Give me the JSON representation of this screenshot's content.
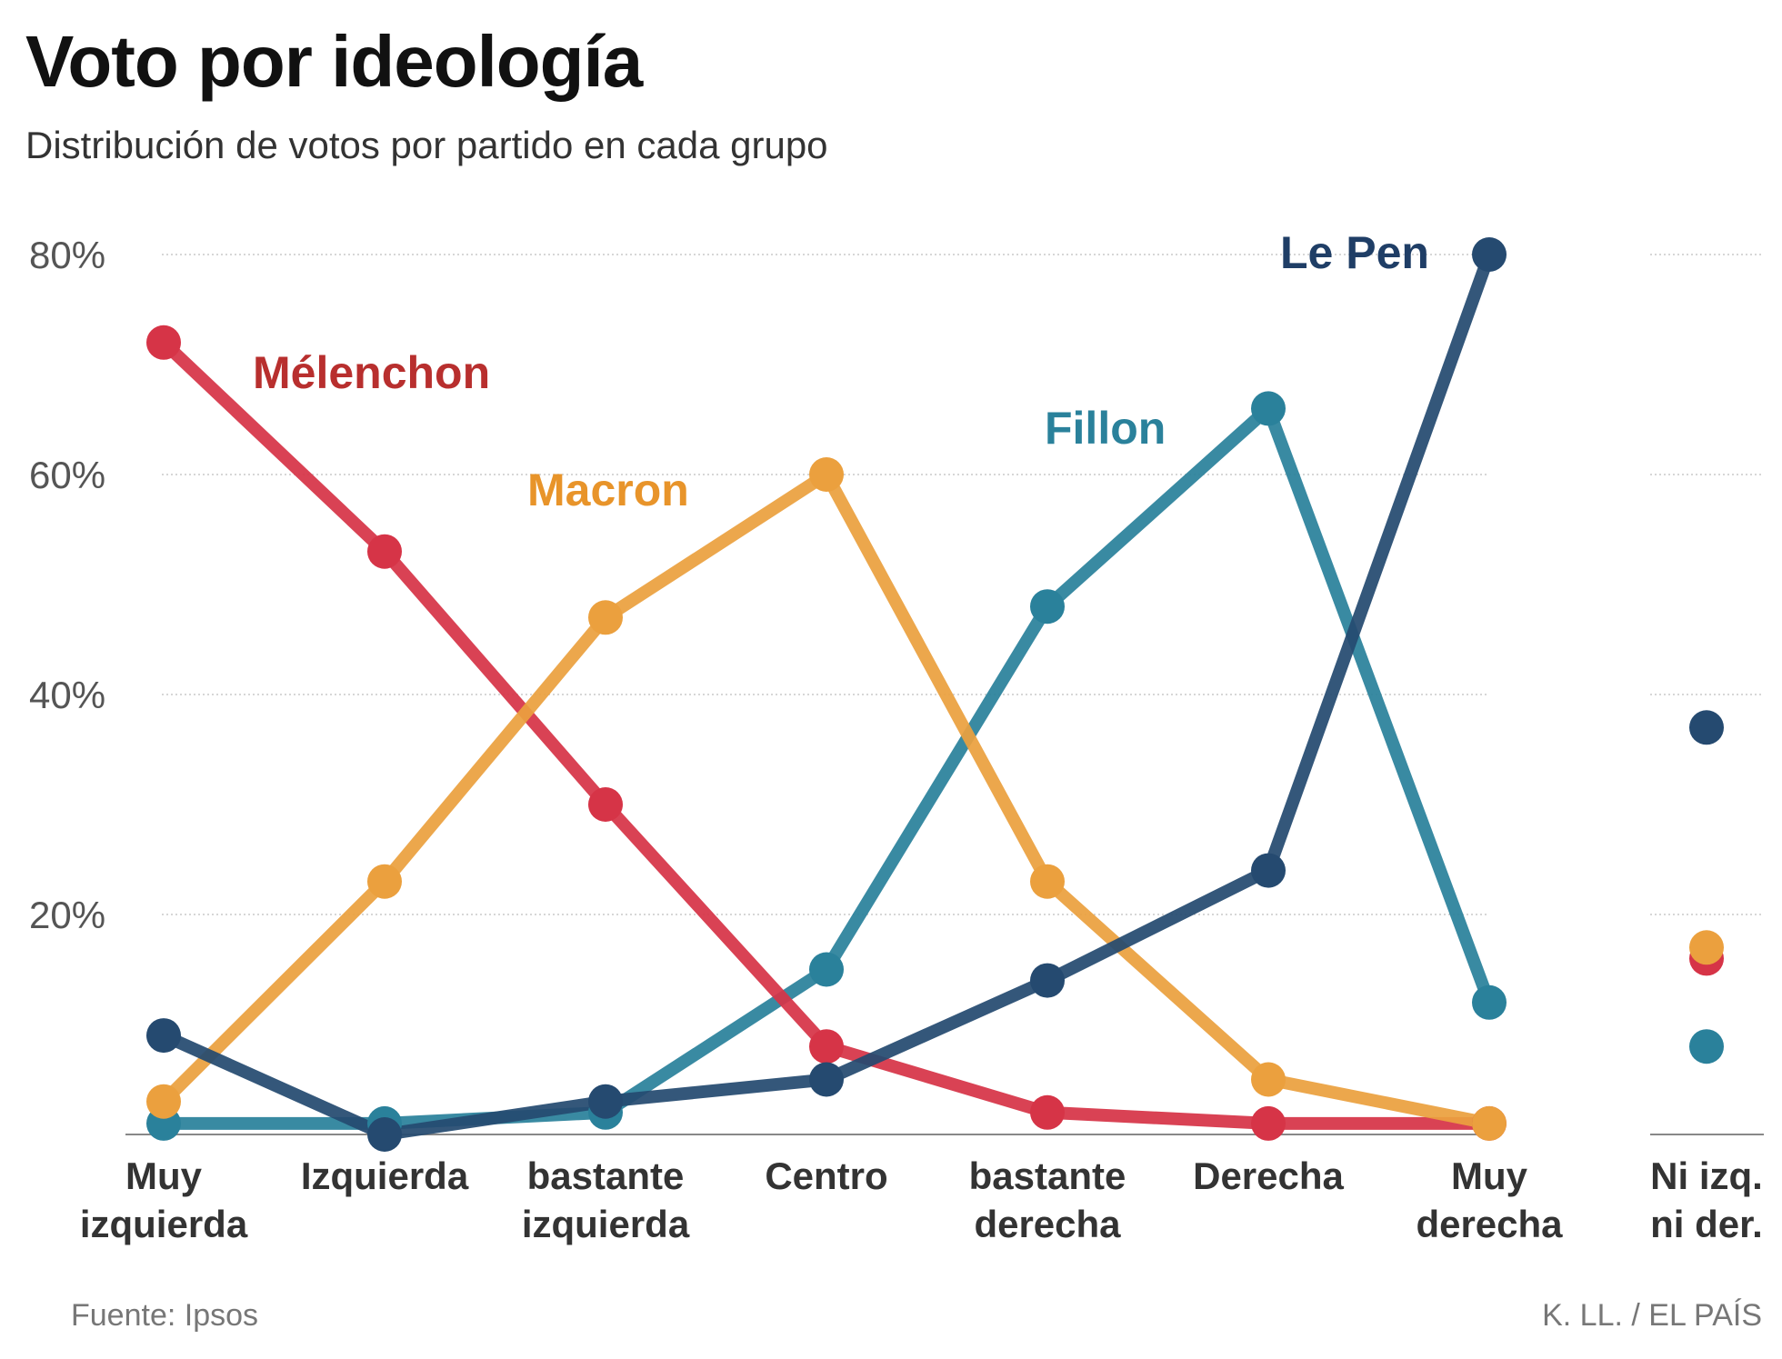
{
  "chart_data": {
    "type": "line",
    "title": "Voto por ideología",
    "subtitle": "Distribución de votos por partido en cada grupo",
    "ylim": [
      0,
      80
    ],
    "yticks": [
      20,
      40,
      60,
      80
    ],
    "ytick_labels": [
      "20%",
      "40%",
      "60%",
      "80%"
    ],
    "categories": [
      [
        "Muy",
        "izquierda"
      ],
      [
        "Izquierda"
      ],
      [
        "bastante",
        "izquierda"
      ],
      [
        "Centro"
      ],
      [
        "bastante",
        "derecha"
      ],
      [
        "Derecha"
      ],
      [
        "Muy",
        "derecha"
      ]
    ],
    "extra_category": [
      "Ni izq.",
      "ni der."
    ],
    "grid": true,
    "series": [
      {
        "name": "Fillon",
        "color": "#2a819b",
        "values": [
          1,
          1,
          2,
          15,
          48,
          66,
          12
        ],
        "extra": 8
      },
      {
        "name": "Mélenchon",
        "color": "#d63447",
        "label_color": "#b82f2e",
        "values": [
          72,
          53,
          30,
          8,
          2,
          1,
          1
        ],
        "extra": 16
      },
      {
        "name": "Macron",
        "color": "#eba03e",
        "label_color": "#e8942a",
        "values": [
          3,
          23,
          47,
          60,
          23,
          5,
          1
        ],
        "extra": 17
      },
      {
        "name": "Le Pen",
        "color": "#254a70",
        "label_color": "#1f3e66",
        "values": [
          9,
          0,
          3,
          5,
          14,
          24,
          80
        ],
        "extra": 37
      }
    ],
    "source": "Fuente: Ipsos",
    "credit": "K. LL. / EL PAÍS"
  }
}
